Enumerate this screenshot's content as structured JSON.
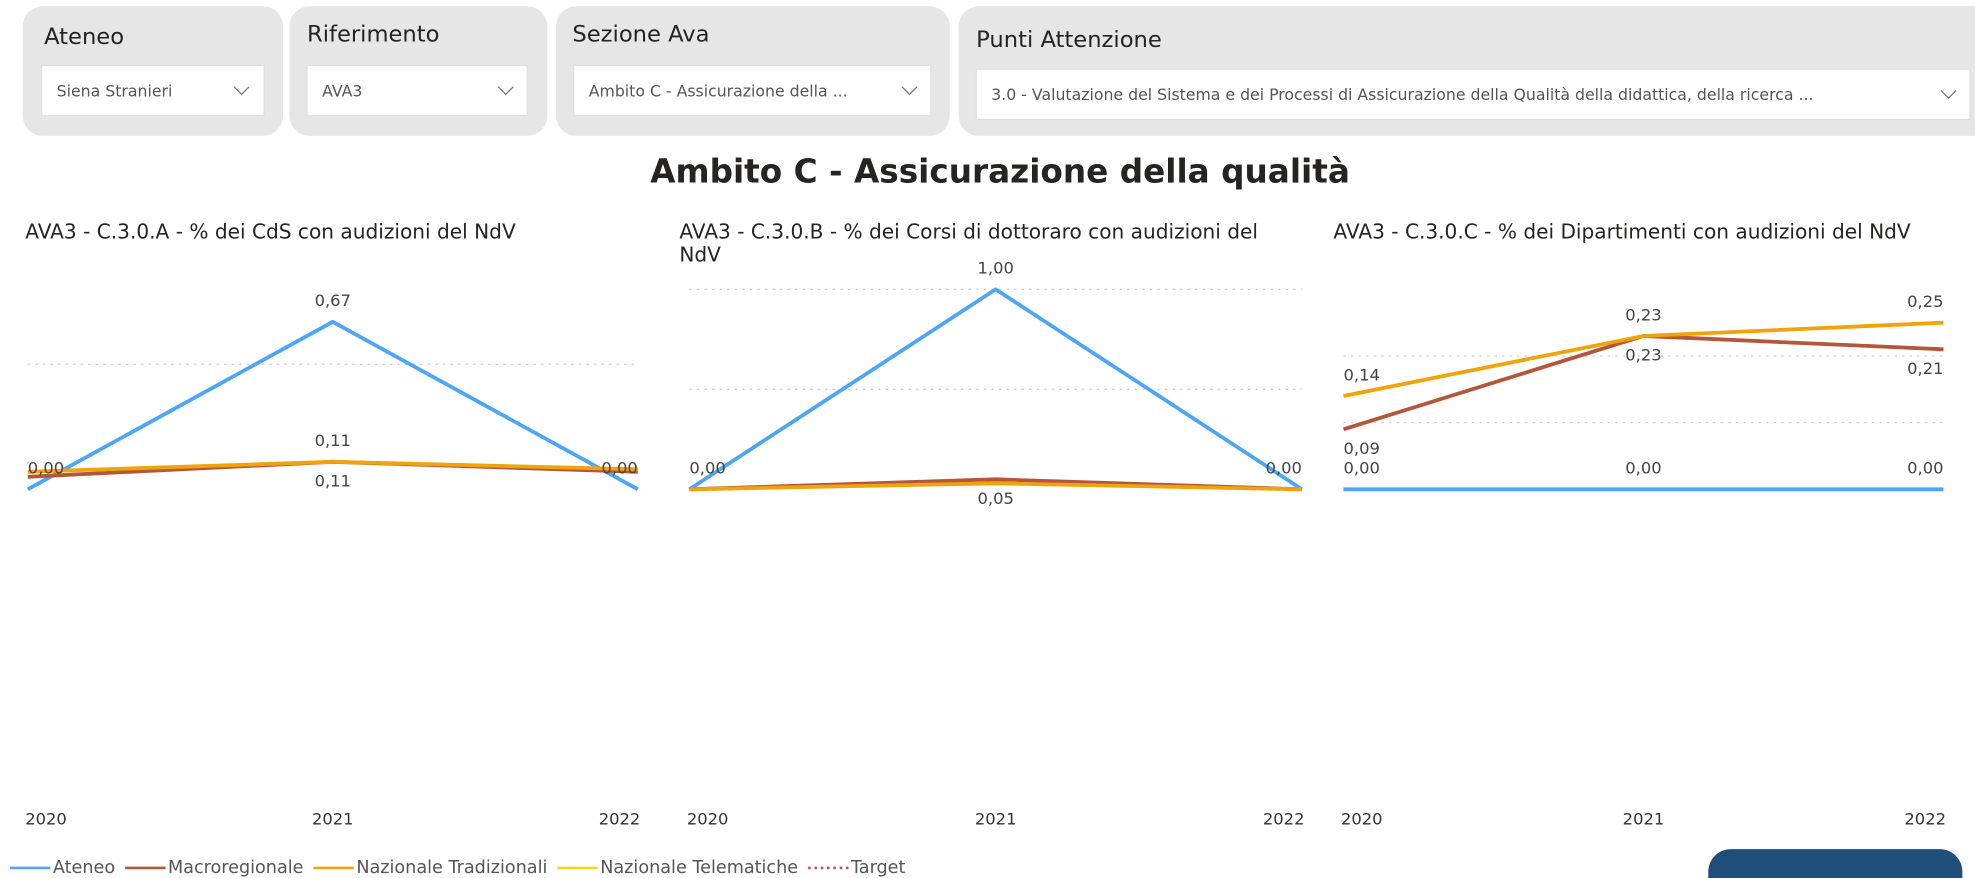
{
  "filters": [
    {
      "label": "Ateneo",
      "value": "Siena Stranieri"
    },
    {
      "label": "Riferimento",
      "value": "AVA3"
    },
    {
      "label": "Sezione Ava",
      "value": "Ambito C - Assicurazione della ..."
    },
    {
      "label": "Punti Attenzione",
      "value": "3.0 - Valutazione del Sistema e dei Processi di Assicurazione della Qualità della didattica, della ricerca ..."
    }
  ],
  "heading": "Ambito C - Assicurazione della qualità",
  "legend": [
    {
      "name": "Ateneo",
      "color": "#4da6f5",
      "dash": false
    },
    {
      "name": "Macroregionale",
      "color": "#b5553a",
      "dash": false
    },
    {
      "name": "Nazionale Tradizionali",
      "color": "#f0a30a",
      "dash": false
    },
    {
      "name": "Nazionale Telematiche",
      "color": "#f2d81d",
      "dash": false
    },
    {
      "name": "Target",
      "color": "#c2427a",
      "dash": true
    }
  ],
  "chart_data": [
    {
      "type": "line",
      "title": "AVA3 - C.3.0.A - % dei CdS con audizioni del NdV",
      "categories": [
        "2020",
        "2021",
        "2022"
      ],
      "ylim": [
        0,
        0.8
      ],
      "yticks": [
        0.5
      ],
      "grid": true,
      "series": [
        {
          "name": "Ateneo",
          "color": "#4da6f5",
          "values": [
            0,
            0.67,
            0
          ],
          "value_labels": [
            "0,00",
            "0,67",
            "0,00"
          ]
        },
        {
          "name": "Macroregionale",
          "color": "#b5553a",
          "values": [
            0.05,
            0.11,
            0.07
          ],
          "value_labels": [
            null,
            "0,11",
            null
          ]
        },
        {
          "name": "Nazionale Tradizionali",
          "color": "#f0a30a",
          "values": [
            0.07,
            0.11,
            0.08
          ],
          "value_labels": [
            null,
            "0,11",
            null
          ]
        }
      ]
    },
    {
      "type": "line",
      "title": "AVA3 - C.3.0.B - % dei Corsi di dottoraro con audizioni del NdV",
      "categories": [
        "2020",
        "2021",
        "2022"
      ],
      "ylim": [
        0,
        1
      ],
      "yticks": [
        0.5,
        1
      ],
      "grid": true,
      "series": [
        {
          "name": "Ateneo",
          "color": "#4da6f5",
          "values": [
            0,
            1,
            0
          ],
          "value_labels": [
            "0,00",
            "1,00",
            "0,00"
          ]
        },
        {
          "name": "Macroregionale",
          "color": "#b5553a",
          "values": [
            0,
            0.05,
            0
          ],
          "value_labels": [
            null,
            "0,05",
            null
          ]
        },
        {
          "name": "Nazionale Tradizionali",
          "color": "#f0a30a",
          "values": [
            0,
            0.03,
            0
          ],
          "value_labels": [
            null,
            null,
            null
          ]
        }
      ]
    },
    {
      "type": "line",
      "title": "AVA3 - C.3.0.C - % dei Dipartimenti con audizioni del NdV",
      "categories": [
        "2020",
        "2021",
        "2022"
      ],
      "ylim": [
        0,
        0.3
      ],
      "yticks": [
        0.1,
        0.2
      ],
      "grid": true,
      "series": [
        {
          "name": "Ateneo",
          "color": "#4da6f5",
          "values": [
            0,
            0,
            0
          ],
          "value_labels": [
            "0,00",
            "0,00",
            "0,00"
          ]
        },
        {
          "name": "Macroregionale",
          "color": "#b5553a",
          "values": [
            0.09,
            0.23,
            0.21
          ],
          "value_labels": [
            "0,09",
            "0,23",
            "0,21"
          ]
        },
        {
          "name": "Nazionale Tradizionali",
          "color": "#f0a30a",
          "values": [
            0.14,
            0.23,
            0.25
          ],
          "value_labels": [
            "0,14",
            "0,23",
            "0,25"
          ]
        }
      ]
    }
  ]
}
